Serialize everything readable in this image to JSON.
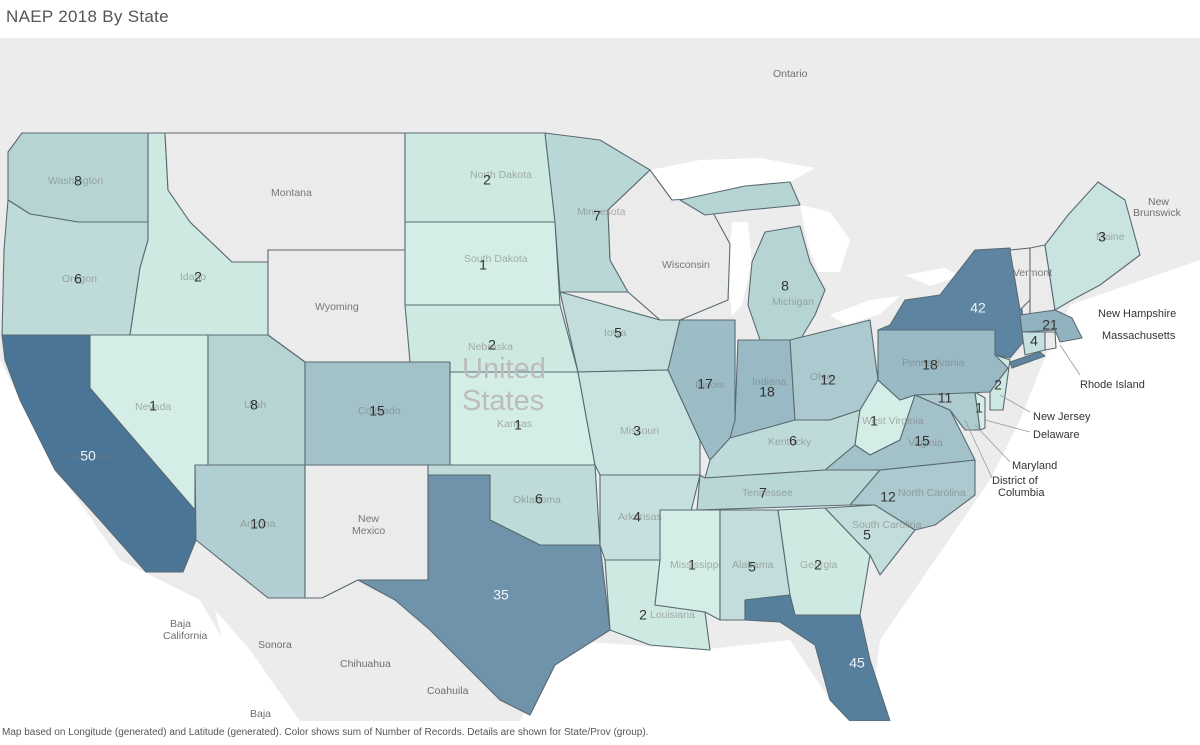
{
  "title": "NAEP 2018 By State",
  "footer": "Map based on Longitude (generated) and Latitude (generated).  Color shows sum of Number of Records.  Details are shown for State/Prov (group).",
  "country_label": [
    "United",
    "States"
  ],
  "geo_labels": {
    "ontario": "Ontario",
    "new_brunswick": [
      "New",
      "Brunswick"
    ],
    "baja_california": [
      "Baja",
      "California"
    ],
    "sonora": "Sonora",
    "chihuahua": "Chihuahua",
    "coahuila": "Coahuila",
    "baja": "Baja",
    "montana": "Montana",
    "wyoming": "Wyoming",
    "new_mexico": [
      "New",
      "Mexico"
    ],
    "wisconsin": "Wisconsin",
    "vermont": "Vermont"
  },
  "colors": {
    "low": "#d4ede6",
    "high": "#4b7597",
    "no_data": "#ebebeb",
    "background": "#ececec"
  },
  "chart_data": {
    "type": "map",
    "measure": "sum of Number of Records",
    "states": [
      {
        "name": "Washington",
        "value": 8
      },
      {
        "name": "Oregon",
        "value": 6
      },
      {
        "name": "California",
        "value": 50
      },
      {
        "name": "Idaho",
        "value": 2
      },
      {
        "name": "Nevada",
        "value": 1
      },
      {
        "name": "Utah",
        "value": 8
      },
      {
        "name": "Arizona",
        "value": 10
      },
      {
        "name": "Colorado",
        "value": 15
      },
      {
        "name": "North Dakota",
        "value": 2
      },
      {
        "name": "South Dakota",
        "value": 1
      },
      {
        "name": "Nebraska",
        "value": 2
      },
      {
        "name": "Kansas",
        "value": 1
      },
      {
        "name": "Oklahoma",
        "value": 6
      },
      {
        "name": "Texas",
        "value": 35
      },
      {
        "name": "Minnesota",
        "value": 7
      },
      {
        "name": "Iowa",
        "value": 5
      },
      {
        "name": "Missouri",
        "value": 3
      },
      {
        "name": "Arkansas",
        "value": 4
      },
      {
        "name": "Louisiana",
        "value": 2
      },
      {
        "name": "Illinois",
        "value": 17
      },
      {
        "name": "Michigan",
        "value": 8
      },
      {
        "name": "Indiana",
        "value": 18
      },
      {
        "name": "Ohio",
        "value": 12
      },
      {
        "name": "Kentucky",
        "value": 6
      },
      {
        "name": "Tennessee",
        "value": 7
      },
      {
        "name": "Mississippi",
        "value": 1
      },
      {
        "name": "Alabama",
        "value": 5
      },
      {
        "name": "Georgia",
        "value": 2
      },
      {
        "name": "Florida",
        "value": 45
      },
      {
        "name": "South Carolina",
        "value": 5
      },
      {
        "name": "North Carolina",
        "value": 12
      },
      {
        "name": "Virginia",
        "value": 15
      },
      {
        "name": "West Virginia",
        "value": 1
      },
      {
        "name": "Pennsylvania",
        "value": 18
      },
      {
        "name": "New York",
        "value": 42
      },
      {
        "name": "Maine",
        "value": 3
      },
      {
        "name": "Massachusetts",
        "value": 21
      },
      {
        "name": "Connecticut",
        "value": 4
      },
      {
        "name": "New Jersey",
        "value": 2
      },
      {
        "name": "Maryland",
        "value": 11
      },
      {
        "name": "Delaware",
        "value": 1
      }
    ],
    "callouts": [
      "New Hampshire",
      "Massachusetts",
      "Rhode Island",
      "New Jersey",
      "Delaware",
      "Maryland",
      "District of Columbia"
    ]
  }
}
